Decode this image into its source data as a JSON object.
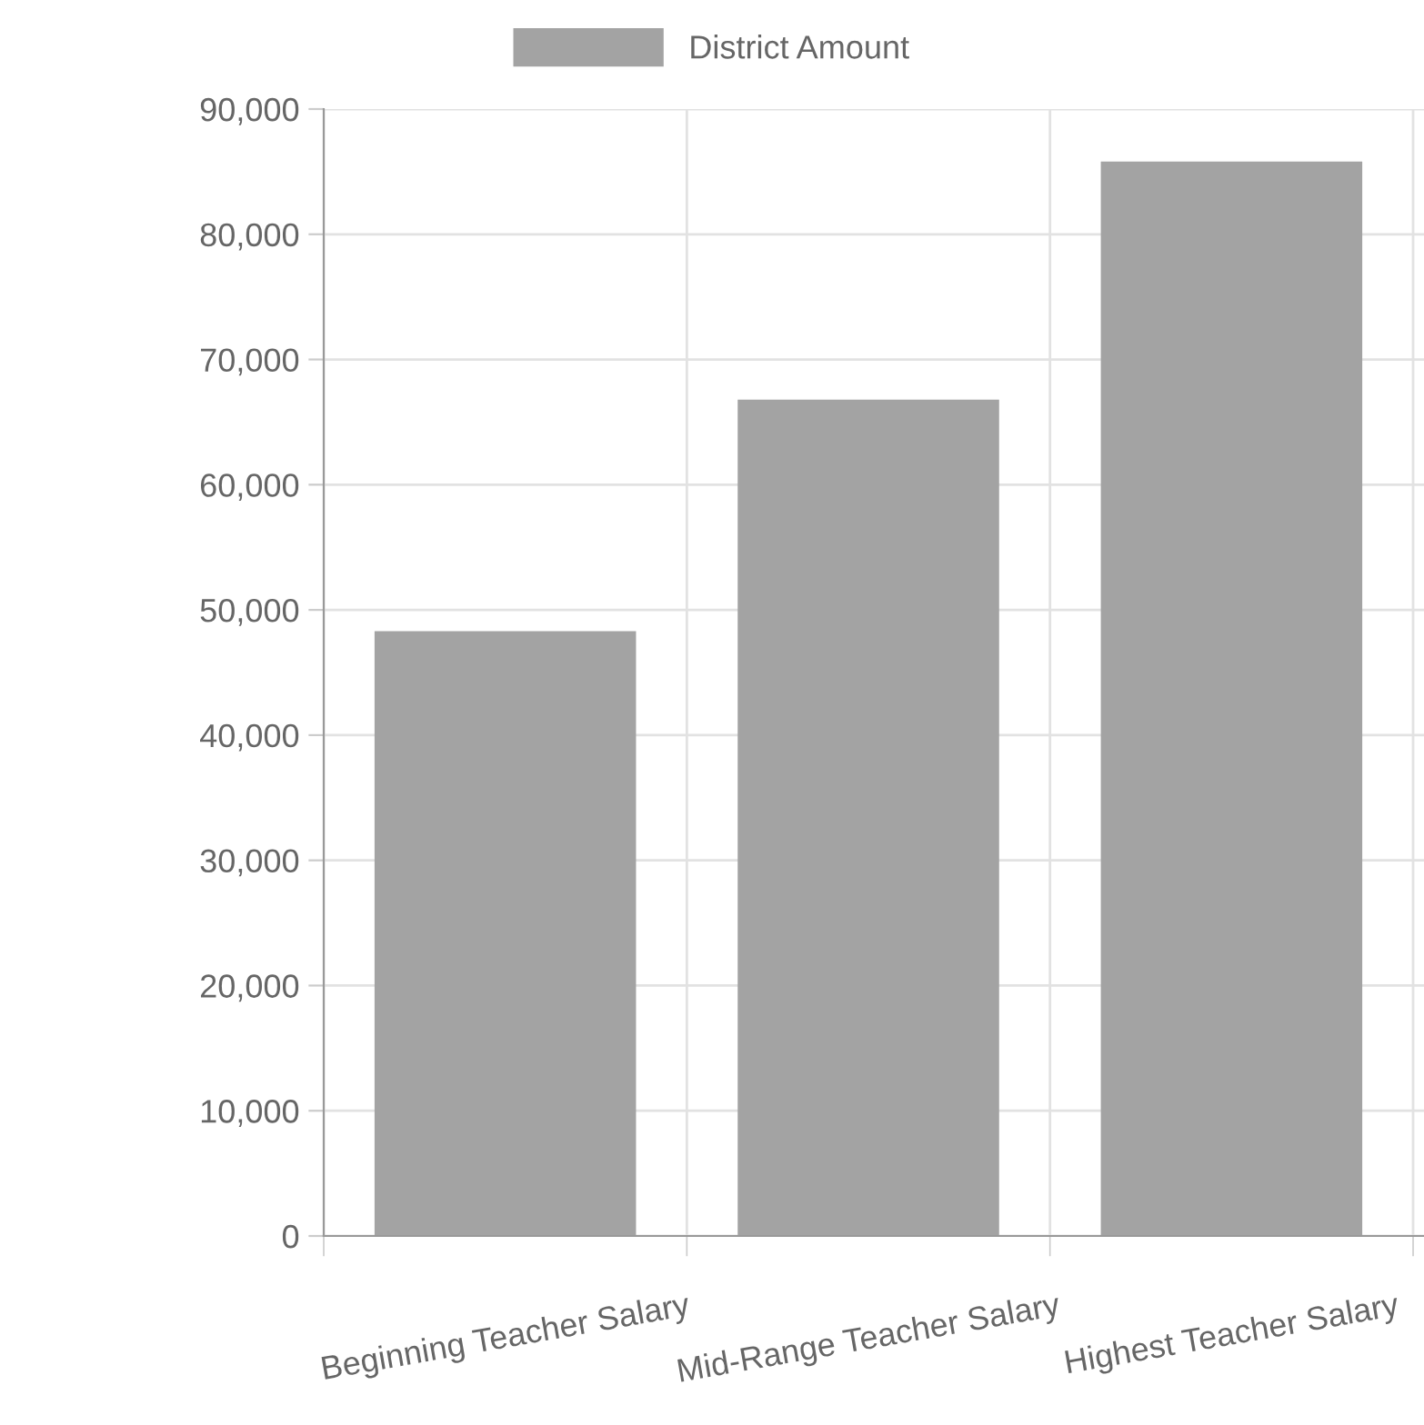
{
  "chart_data": {
    "type": "bar",
    "categories": [
      "Beginning Teacher Salary",
      "Mid-Range Teacher Salary",
      "Highest Teacher Salary"
    ],
    "series": [
      {
        "name": "District Amount",
        "color": "#a3a3a3",
        "values": [
          48300,
          66800,
          85800
        ]
      }
    ],
    "ylim": [
      0,
      90000
    ],
    "yticks": [
      {
        "value": 0,
        "label": "0"
      },
      {
        "value": 10000,
        "label": "10,000"
      },
      {
        "value": 20000,
        "label": "20,000"
      },
      {
        "value": 30000,
        "label": "30,000"
      },
      {
        "value": 40000,
        "label": "40,000"
      },
      {
        "value": 50000,
        "label": "50,000"
      },
      {
        "value": 60000,
        "label": "60,000"
      },
      {
        "value": 70000,
        "label": "70,000"
      },
      {
        "value": 80000,
        "label": "80,000"
      },
      {
        "value": 90000,
        "label": "90,000"
      }
    ],
    "grid": true,
    "legend": "top"
  }
}
